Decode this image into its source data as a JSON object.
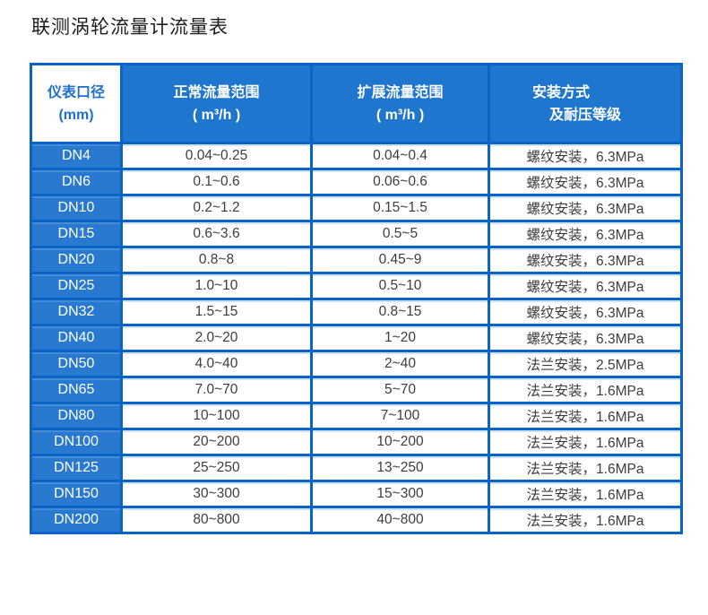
{
  "page": {
    "title": "联测涡轮流量计流量表"
  },
  "colors": {
    "border": "#0a63c6",
    "header_bg": "#1f76ce",
    "first_col_bg": "#2979d1",
    "header_first_text": "#1e6fd0",
    "body_text": "#3d3d3d",
    "title_text": "#1c1c1c",
    "divider_highlight": "#cfe2f5"
  },
  "table": {
    "header": {
      "columns": [
        {
          "line1": "仪表口径",
          "line2": "(mm)"
        },
        {
          "line1": "正常流量范围",
          "line2": "( m³/h )"
        },
        {
          "line1": "扩展流量范围",
          "line2": "( m³/h )"
        },
        {
          "line1": "安装方式",
          "line2": "及耐压等级"
        }
      ]
    },
    "rows": [
      [
        "DN4",
        "0.04~0.25",
        "0.04~0.4",
        "螺纹安装，6.3MPa"
      ],
      [
        "DN6",
        "0.1~0.6",
        "0.06~0.6",
        "螺纹安装，6.3MPa"
      ],
      [
        "DN10",
        "0.2~1.2",
        "0.15~1.5",
        "螺纹安装，6.3MPa"
      ],
      [
        "DN15",
        "0.6~3.6",
        "0.5~5",
        "螺纹安装，6.3MPa"
      ],
      [
        "DN20",
        "0.8~8",
        "0.45~9",
        "螺纹安装，6.3MPa"
      ],
      [
        "DN25",
        "1.0~10",
        "0.5~10",
        "螺纹安装，6.3MPa"
      ],
      [
        "DN32",
        "1.5~15",
        "0.8~15",
        "螺纹安装，6.3MPa"
      ],
      [
        "DN40",
        "2.0~20",
        "1~20",
        "螺纹安装，6.3MPa"
      ],
      [
        "DN50",
        "4.0~40",
        "2~40",
        "法兰安装，2.5MPa"
      ],
      [
        "DN65",
        "7.0~70",
        "5~70",
        "法兰安装，1.6MPa"
      ],
      [
        "DN80",
        "10~100",
        "7~100",
        "法兰安装，1.6MPa"
      ],
      [
        "DN100",
        "20~200",
        "10~200",
        "法兰安装，1.6MPa"
      ],
      [
        "DN125",
        "25~250",
        "13~250",
        "法兰安装，1.6MPa"
      ],
      [
        "DN150",
        "30~300",
        "15~300",
        "法兰安装，1.6MPa"
      ],
      [
        "DN200",
        "80~800",
        "40~800",
        "法兰安装，1.6MPa"
      ]
    ]
  }
}
